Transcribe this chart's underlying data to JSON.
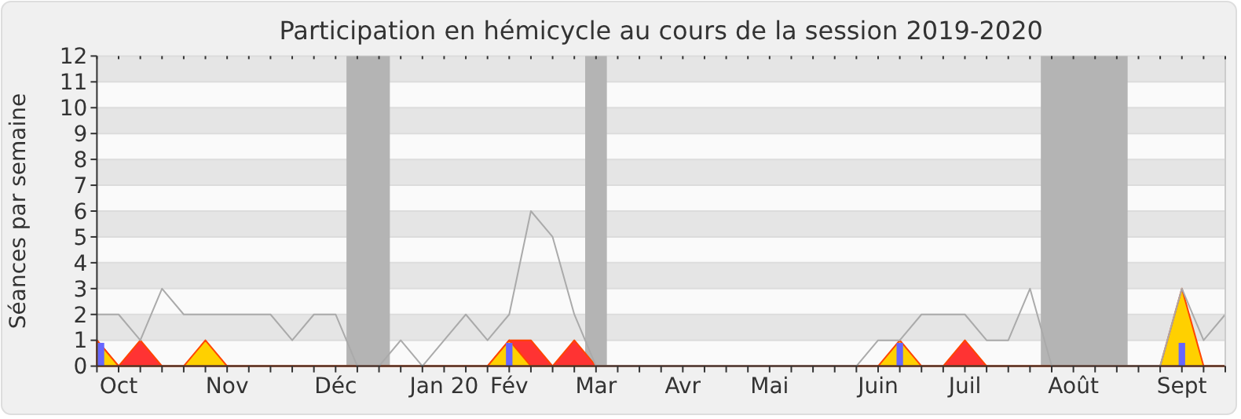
{
  "chart_data": {
    "type": "area",
    "title": "Participation en hémicycle au cours de la session 2019-2020",
    "ylabel": "Séances par semaine",
    "categories": [
      null,
      "Oct",
      null,
      null,
      null,
      null,
      "Nov",
      null,
      null,
      null,
      null,
      "Déc",
      null,
      null,
      null,
      null,
      "Jan 20",
      null,
      null,
      "Fév",
      null,
      null,
      null,
      "Mar",
      null,
      null,
      null,
      "Avr",
      null,
      null,
      null,
      "Mai",
      null,
      null,
      null,
      null,
      "Juin",
      null,
      null,
      null,
      "Juil",
      null,
      null,
      null,
      null,
      "Août",
      null,
      null,
      null,
      null,
      "Sept",
      null,
      null
    ],
    "ylim": [
      0,
      12
    ],
    "yticks": [
      0,
      1,
      2,
      3,
      4,
      5,
      6,
      7,
      8,
      9,
      10,
      11,
      12
    ],
    "grid": "y",
    "series": [
      {
        "type": "line",
        "color": "#aaaaaa",
        "values": [
          2,
          2,
          1,
          3,
          2,
          2,
          2,
          2,
          2,
          1,
          2,
          2,
          0,
          0,
          1,
          0,
          1,
          2,
          1,
          2,
          6,
          5,
          2,
          0,
          0,
          0,
          0,
          0,
          0,
          0,
          0,
          0,
          0,
          0,
          0,
          0,
          1,
          1,
          2,
          2,
          2,
          1,
          1,
          3,
          0,
          0,
          0,
          0,
          0,
          0,
          3,
          1,
          2
        ]
      },
      {
        "color": "#ff3333",
        "values": [
          1,
          0,
          1,
          0,
          0,
          0,
          0,
          0,
          0,
          0,
          0,
          0,
          0,
          0,
          0,
          0,
          0,
          0,
          0,
          1,
          1,
          0,
          1,
          0,
          0,
          0,
          0,
          0,
          0,
          0,
          0,
          0,
          0,
          0,
          0,
          0,
          0,
          0,
          0,
          0,
          1,
          0,
          0,
          0,
          0,
          0,
          0,
          0,
          0,
          0,
          0,
          0,
          0
        ]
      },
      {
        "color": "#ffd000",
        "values": [
          1,
          0,
          0,
          0,
          0,
          1,
          0,
          0,
          0,
          0,
          0,
          0,
          0,
          0,
          0,
          0,
          0,
          0,
          0,
          1,
          0,
          0,
          0,
          0,
          0,
          0,
          0,
          0,
          0,
          0,
          0,
          0,
          0,
          0,
          0,
          0,
          0,
          1,
          0,
          0,
          0,
          0,
          0,
          0,
          0,
          0,
          0,
          0,
          0,
          0,
          3,
          0,
          0
        ]
      },
      {
        "type": "bar",
        "color": "#6666ff",
        "values": [
          0.9,
          null,
          null,
          null,
          null,
          null,
          null,
          null,
          null,
          null,
          null,
          null,
          null,
          null,
          null,
          null,
          null,
          null,
          null,
          0.9,
          null,
          null,
          null,
          null,
          null,
          null,
          null,
          null,
          null,
          null,
          null,
          null,
          null,
          null,
          null,
          null,
          null,
          0.9,
          null,
          null,
          null,
          null,
          null,
          null,
          null,
          null,
          null,
          null,
          null,
          null,
          0.9,
          null,
          null
        ]
      }
    ]
  }
}
